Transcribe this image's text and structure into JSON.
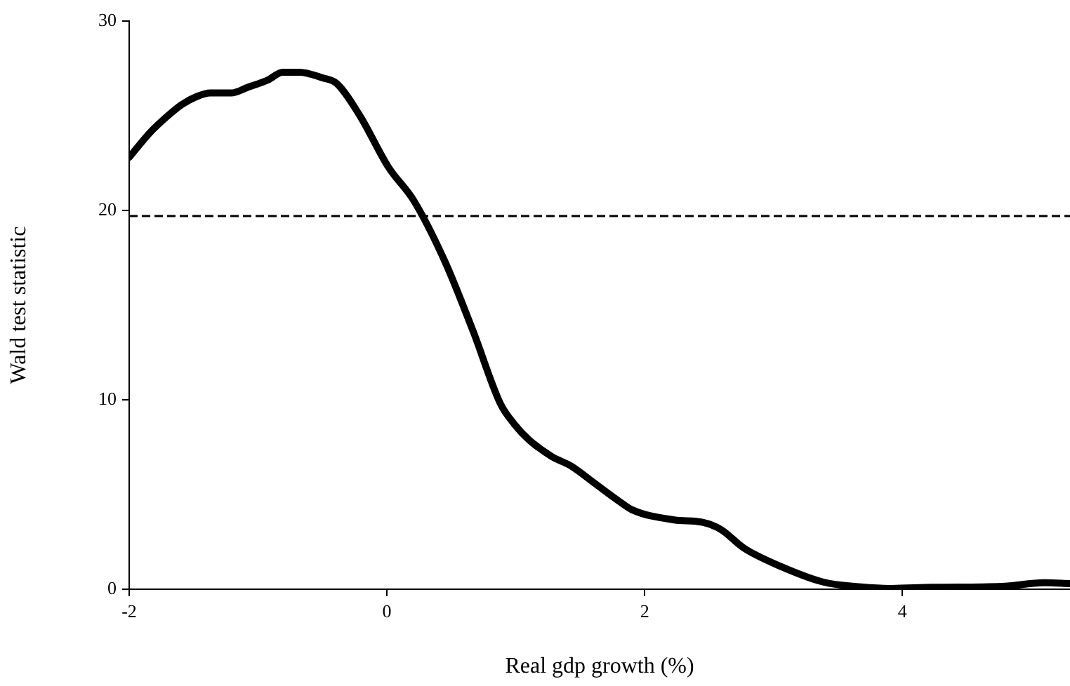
{
  "chart_data": {
    "type": "line",
    "xlabel": "Real gdp growth (%)",
    "ylabel": "Wald test statistic",
    "xlim": [
      -2,
      5.3
    ],
    "xticks": [
      -2,
      0,
      2,
      4
    ],
    "ylim": [
      0,
      30
    ],
    "yticks": [
      0,
      10,
      20,
      30
    ],
    "grid": false,
    "marker": "none",
    "line_style": "solid",
    "series": [
      {
        "color": "#000000",
        "x": [
          -2,
          -1.84,
          -1.7,
          -1.59,
          -1.48,
          -1.37,
          -1.21,
          -1.08,
          -0.92,
          -0.81,
          -0.68,
          -0.5,
          -0.39,
          -0.21,
          0.01,
          0.21,
          0.45,
          0.67,
          0.88,
          0.99,
          1.1,
          1.28,
          1.43,
          1.61,
          1.79,
          1.9,
          2.23,
          2.45,
          2.59,
          2.77,
          3.06,
          3.39,
          3.68,
          3.9,
          4.23,
          4.77,
          5.1,
          5.3
        ],
        "values": [
          22.8,
          24.1,
          25,
          25.6,
          26,
          26.2,
          26.2,
          26.5,
          26.9,
          27.3,
          27.3,
          27,
          26.7,
          25,
          22.3,
          20.5,
          17.3,
          13.6,
          9.8,
          8.7,
          7.9,
          7,
          6.5,
          5.6,
          4.7,
          4.2,
          3.66,
          3.53,
          3.16,
          2.17,
          1.19,
          0.37,
          0.12,
          0.04,
          0.1,
          0.15,
          0.34,
          0.3
        ]
      }
    ],
    "ref_lines": [
      {
        "axis": "y",
        "value": 19.7,
        "color": "#000000",
        "line_style": "dashed"
      }
    ]
  }
}
